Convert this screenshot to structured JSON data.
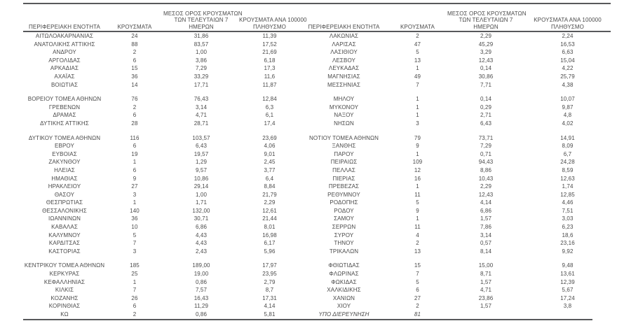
{
  "colors": {
    "text": "#4a4a4a",
    "line": "#58595b",
    "background": "#ffffff"
  },
  "table": {
    "headers": {
      "region": "ΠΕΡΙΦΕΡΕΙΑΚΗ ΕΝΟΤΗΤΑ",
      "cases": "ΚΡΟΥΣΜΑΤΑ",
      "avg7": [
        "ΜΕΣΟΣ ΟΡΟΣ ΚΡΟΥΣΜΑΤΩΝ",
        "ΤΩΝ ΤΕΛΕΥΤΑΙΩΝ 7",
        "ΗΜΕΡΩΝ"
      ],
      "per100k": [
        "ΚΡΟΥΣΜΑΤΑ ΑΝΑ 100000",
        "ΠΛΗΘΥΣΜΟ"
      ]
    },
    "columns": [
      "region",
      "cases",
      "avg_7day_cases",
      "cases_per_100000"
    ],
    "emphasized_region": "ΥΠΟ ΔΙΕΡΕΥΝΗΣΗ",
    "left_groups": [
      [
        [
          "ΑΙΤΩΛΟΑΚΑΡΝΑΝΙΑΣ",
          "24",
          "31,86",
          "11,39"
        ],
        [
          "ΑΝΑΤΟΛΙΚΗΣ ΑΤΤΙΚΗΣ",
          "88",
          "83,57",
          "17,52"
        ],
        [
          "ΑΝΔΡΟΥ",
          "2",
          "1,00",
          "21,69"
        ],
        [
          "ΑΡΓΟΛΙΔΑΣ",
          "6",
          "3,86",
          "6,18"
        ],
        [
          "ΑΡΚΑΔΙΑΣ",
          "15",
          "7,29",
          "17,3"
        ],
        [
          "ΑΧΑΪΑΣ",
          "36",
          "33,29",
          "11,6"
        ],
        [
          "ΒΟΙΩΤΙΑΣ",
          "14",
          "17,71",
          "11,87"
        ]
      ],
      [
        [
          "ΒΟΡΕΙΟΥ ΤΟΜΕΑ ΑΘΗΝΩΝ",
          "76",
          "76,43",
          "12,84"
        ],
        [
          "ΓΡΕΒΕΝΩΝ",
          "2",
          "3,14",
          "6,3"
        ],
        [
          "ΔΡΑΜΑΣ",
          "6",
          "4,71",
          "6,1"
        ],
        [
          "ΔΥΤΙΚΗΣ ΑΤΤΙΚΗΣ",
          "28",
          "28,71",
          "17,4"
        ]
      ],
      [
        [
          "ΔΥΤΙΚΟΥ ΤΟΜΕΑ ΑΘΗΝΩΝ",
          "116",
          "103,57",
          "23,69"
        ],
        [
          "ΕΒΡΟΥ",
          "6",
          "6,43",
          "4,06"
        ],
        [
          "ΕΥΒΟΙΑΣ",
          "19",
          "19,57",
          "9,01"
        ],
        [
          "ΖΑΚΥΝΘΟΥ",
          "1",
          "1,29",
          "2,45"
        ],
        [
          "ΗΛΕΙΑΣ",
          "6",
          "9,57",
          "3,77"
        ],
        [
          "ΗΜΑΘΙΑΣ",
          "9",
          "10,86",
          "6,4"
        ],
        [
          "ΗΡΑΚΛΕΙΟΥ",
          "27",
          "29,14",
          "8,84"
        ],
        [
          "ΘΑΣΟΥ",
          "3",
          "1,00",
          "21,79"
        ],
        [
          "ΘΕΣΠΡΩΤΙΑΣ",
          "1",
          "1,71",
          "2,29"
        ],
        [
          "ΘΕΣΣΑΛΟΝΙΚΗΣ",
          "140",
          "132,00",
          "12,61"
        ],
        [
          "ΙΩΑΝΝΙΝΩΝ",
          "36",
          "30,71",
          "21,44"
        ],
        [
          "ΚΑΒΑΛΑΣ",
          "10",
          "6,86",
          "8,01"
        ],
        [
          "ΚΑΛΥΜΝΟΥ",
          "5",
          "4,43",
          "16,98"
        ],
        [
          "ΚΑΡΔΙΤΣΑΣ",
          "7",
          "4,43",
          "6,17"
        ],
        [
          "ΚΑΣΤΟΡΙΑΣ",
          "3",
          "2,43",
          "5,96"
        ]
      ],
      [
        [
          "ΚΕΝΤΡΙΚΟΥ ΤΟΜΕΑ ΑΘΗΝΩΝ",
          "185",
          "189,00",
          "17,97"
        ],
        [
          "ΚΕΡΚΥΡΑΣ",
          "25",
          "19,00",
          "23,95"
        ],
        [
          "ΚΕΦΑΛΛΗΝΙΑΣ",
          "1",
          "0,86",
          "2,79"
        ],
        [
          "ΚΙΛΚΙΣ",
          "7",
          "7,57",
          "8,7"
        ],
        [
          "ΚΟΖΑΝΗΣ",
          "26",
          "16,43",
          "17,31"
        ],
        [
          "ΚΟΡΙΝΘΙΑΣ",
          "6",
          "11,29",
          "4,14"
        ],
        [
          "ΚΩ",
          "2",
          "0,86",
          "5,81"
        ]
      ]
    ],
    "right_groups": [
      [
        [
          "ΛΑΚΩΝΙΑΣ",
          "2",
          "2,29",
          "2,24"
        ],
        [
          "ΛΑΡΙΣΑΣ",
          "47",
          "45,29",
          "16,53"
        ],
        [
          "ΛΑΣΙΘΙΟΥ",
          "5",
          "3,29",
          "6,63"
        ],
        [
          "ΛΕΣΒΟΥ",
          "13",
          "12,43",
          "15,04"
        ],
        [
          "ΛΕΥΚΑΔΑΣ",
          "1",
          "0,14",
          "4,22"
        ],
        [
          "ΜΑΓΝΗΣΙΑΣ",
          "49",
          "30,86",
          "25,79"
        ],
        [
          "ΜΕΣΣΗΝΙΑΣ",
          "7",
          "7,71",
          "4,38"
        ]
      ],
      [
        [
          "ΜΗΛΟΥ",
          "1",
          "0,14",
          "10,07"
        ],
        [
          "ΜΥΚΟΝΟΥ",
          "1",
          "0,29",
          "9,87"
        ],
        [
          "ΝΑΞΟΥ",
          "1",
          "2,71",
          "4,8"
        ],
        [
          "ΝΗΣΩΝ",
          "3",
          "6,43",
          "4,02"
        ]
      ],
      [
        [
          "ΝΟΤΙΟΥ ΤΟΜΕΑ ΑΘΗΝΩΝ",
          "79",
          "73,71",
          "14,91"
        ],
        [
          "ΞΑΝΘΗΣ",
          "9",
          "7,29",
          "8,09"
        ],
        [
          "ΠΑΡΟΥ",
          "1",
          "0,71",
          "6,7"
        ],
        [
          "ΠΕΙΡΑΙΩΣ",
          "109",
          "94,43",
          "24,28"
        ],
        [
          "ΠΕΛΛΑΣ",
          "12",
          "8,86",
          "8,59"
        ],
        [
          "ΠΙΕΡΙΑΣ",
          "16",
          "10,43",
          "12,63"
        ],
        [
          "ΠΡΕΒΕΖΑΣ",
          "1",
          "2,29",
          "1,74"
        ],
        [
          "ΡΕΘΥΜΝΟΥ",
          "11",
          "12,43",
          "12,85"
        ],
        [
          "ΡΟΔΟΠΗΣ",
          "5",
          "4,14",
          "4,46"
        ],
        [
          "ΡΟΔΟΥ",
          "9",
          "6,86",
          "7,51"
        ],
        [
          "ΣΑΜΟΥ",
          "1",
          "1,57",
          "3,03"
        ],
        [
          "ΣΕΡΡΩΝ",
          "11",
          "7,86",
          "6,23"
        ],
        [
          "ΣΥΡΟΥ",
          "4",
          "3,14",
          "18,6"
        ],
        [
          "ΤΗΝΟΥ",
          "2",
          "0,57",
          "23,16"
        ],
        [
          "ΤΡΙΚΑΛΩΝ",
          "13",
          "8,14",
          "9,92"
        ]
      ],
      [
        [
          "ΦΘΙΩΤΙΔΑΣ",
          "15",
          "15,00",
          "9,48"
        ],
        [
          "ΦΛΩΡΙΝΑΣ",
          "7",
          "8,71",
          "13,61"
        ],
        [
          "ΦΩΚΙΔΑΣ",
          "5",
          "1,57",
          "12,39"
        ],
        [
          "ΧΑΛΚΙΔΙΚΗΣ",
          "6",
          "4,71",
          "5,67"
        ],
        [
          "ΧΑΝΙΩΝ",
          "27",
          "23,86",
          "17,24"
        ],
        [
          "ΧΙΟΥ",
          "2",
          "1,57",
          "3,8"
        ],
        [
          "ΥΠΟ ΔΙΕΡΕΥΝΗΣΗ",
          "81",
          "",
          ""
        ]
      ]
    ]
  }
}
